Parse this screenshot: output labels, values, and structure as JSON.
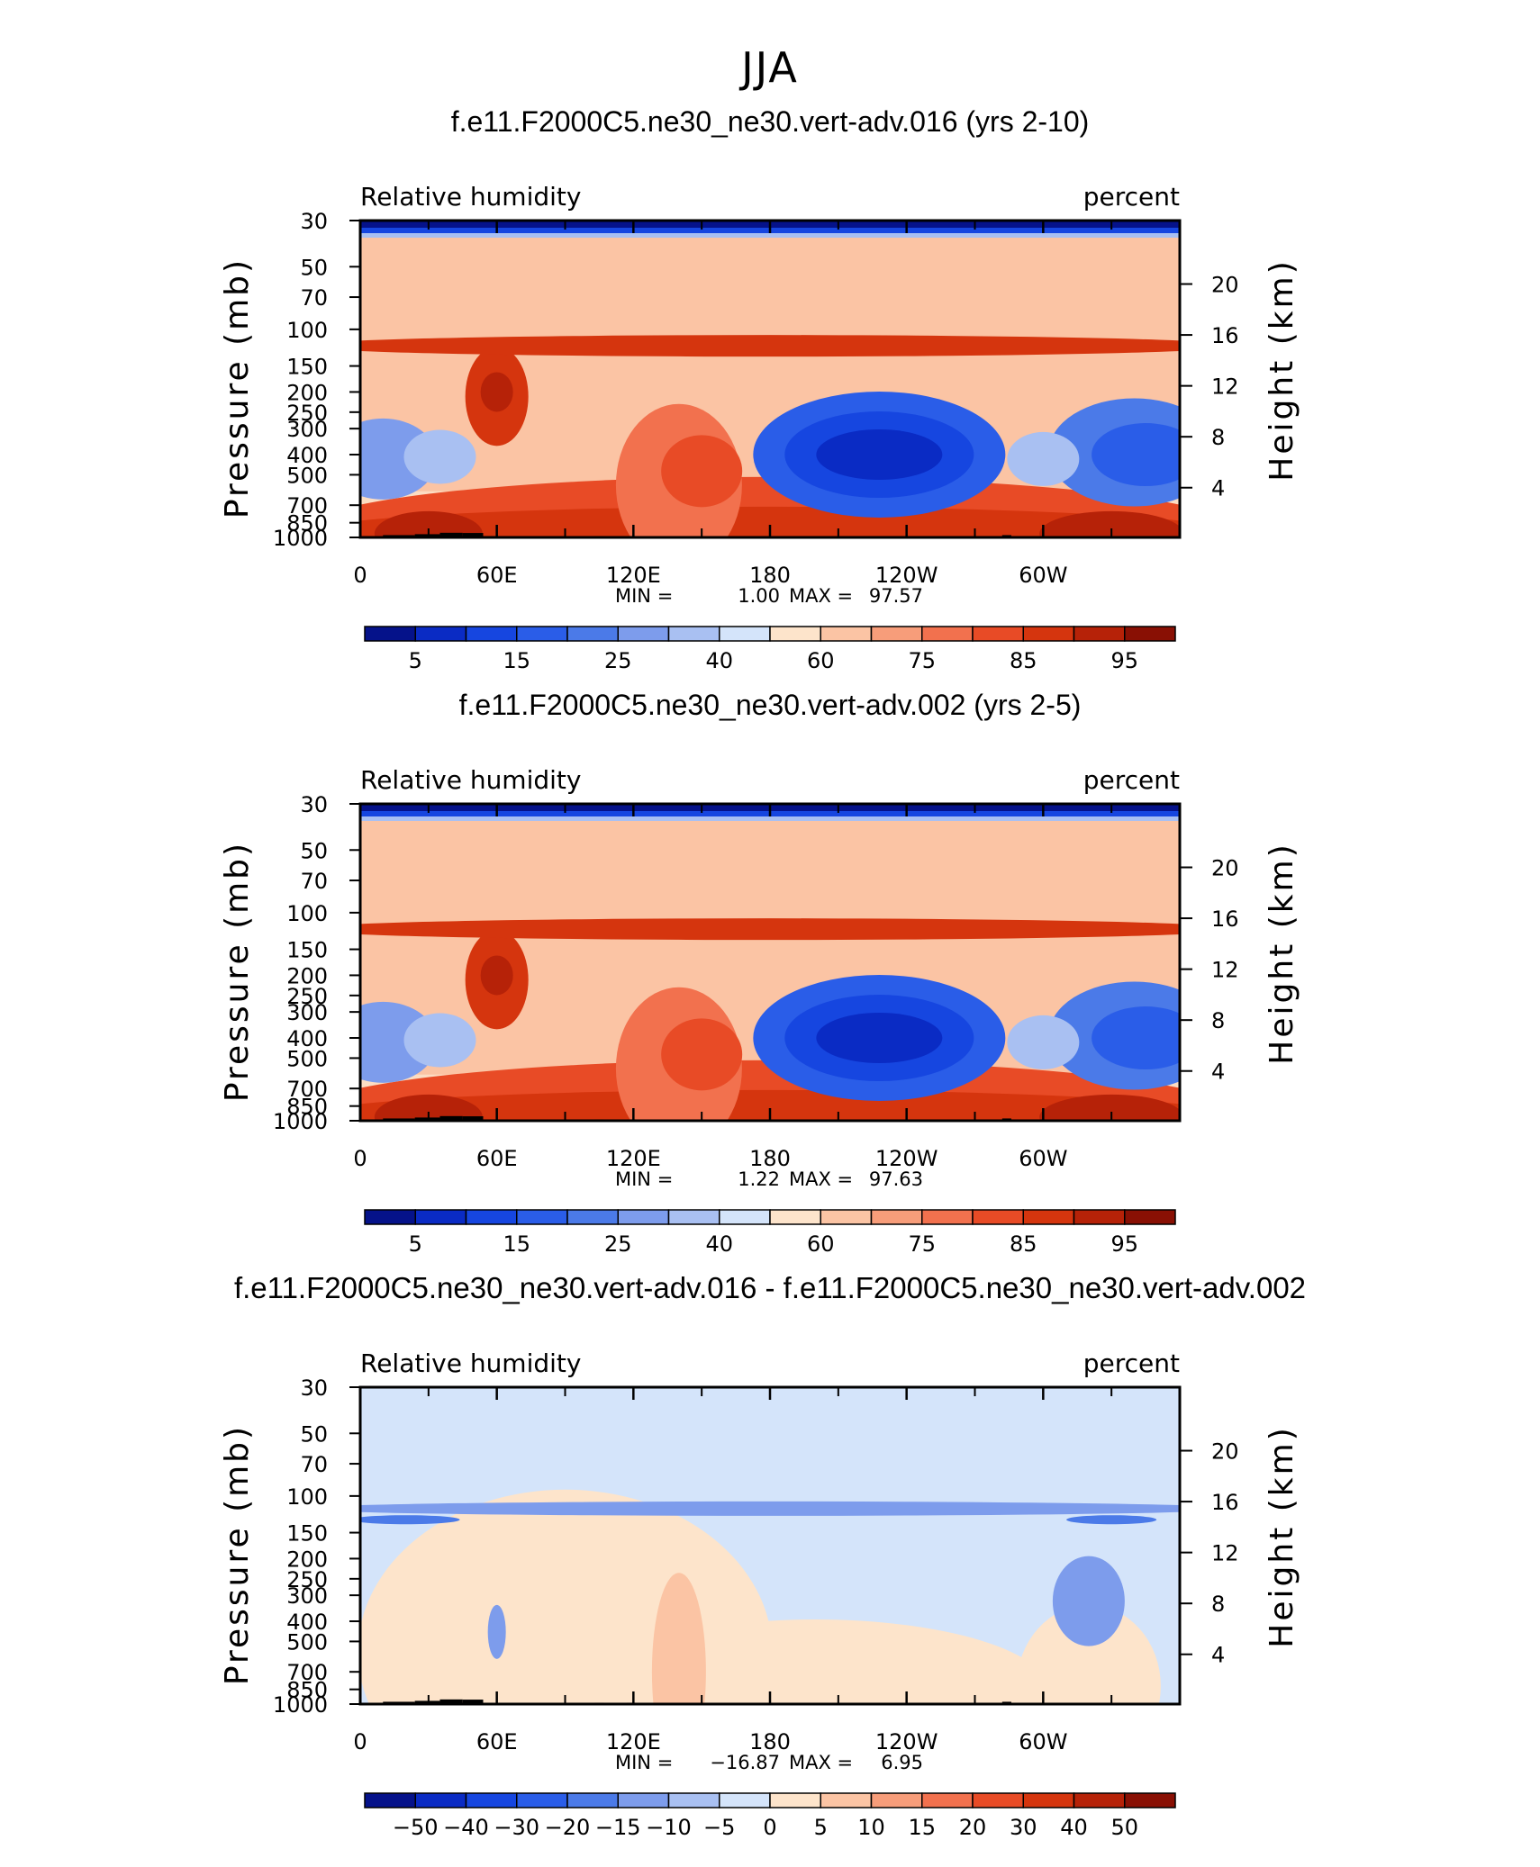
{
  "page_title": "JJA",
  "colors": {
    "frame": "#000000",
    "land": "#000000"
  },
  "chart_data": [
    {
      "type": "contour",
      "title": "f.e11.F2000C5.ne30_ne30.vert-adv.016 (yrs 2-10)",
      "subtitle_left": "Relative humidity",
      "subtitle_right": "percent",
      "ylabel": "Pressure (mb)",
      "ylabel_right": "Height (km)",
      "x_ticks": [
        "0",
        "60E",
        "120E",
        "180",
        "120W",
        "60W"
      ],
      "y_ticks": [
        "30",
        "50",
        "70",
        "100",
        "150",
        "200",
        "250",
        "300",
        "400",
        "500",
        "700",
        "850",
        "1000"
      ],
      "height_ticks": [
        "20",
        "16",
        "12",
        "8",
        "4"
      ],
      "min_label": "MIN =",
      "min_value": "1.00",
      "max_label": "MAX =",
      "max_value": "97.57",
      "colorbar_labels": [
        "5",
        "15",
        "25",
        "40",
        "60",
        "75",
        "85",
        "95"
      ],
      "colorbar_colors": [
        "#05128a",
        "#0a2bc4",
        "#1646e0",
        "#2a5de8",
        "#4b7ae8",
        "#7d9cec",
        "#a9c0f2",
        "#d4e4fa",
        "#fde4cb",
        "#fbc4a4",
        "#f79d7a",
        "#f2714e",
        "#e84b26",
        "#d5350e",
        "#b62208",
        "#891004"
      ],
      "value_range": [
        1.0,
        97.57
      ]
    },
    {
      "type": "contour",
      "title": "f.e11.F2000C5.ne30_ne30.vert-adv.002 (yrs 2-5)",
      "subtitle_left": "Relative humidity",
      "subtitle_right": "percent",
      "ylabel": "Pressure (mb)",
      "ylabel_right": "Height (km)",
      "x_ticks": [
        "0",
        "60E",
        "120E",
        "180",
        "120W",
        "60W"
      ],
      "y_ticks": [
        "30",
        "50",
        "70",
        "100",
        "150",
        "200",
        "250",
        "300",
        "400",
        "500",
        "700",
        "850",
        "1000"
      ],
      "height_ticks": [
        "20",
        "16",
        "12",
        "8",
        "4"
      ],
      "min_label": "MIN =",
      "min_value": "1.22",
      "max_label": "MAX =",
      "max_value": "97.63",
      "colorbar_labels": [
        "5",
        "15",
        "25",
        "40",
        "60",
        "75",
        "85",
        "95"
      ],
      "colorbar_colors": [
        "#05128a",
        "#0a2bc4",
        "#1646e0",
        "#2a5de8",
        "#4b7ae8",
        "#7d9cec",
        "#a9c0f2",
        "#d4e4fa",
        "#fde4cb",
        "#fbc4a4",
        "#f79d7a",
        "#f2714e",
        "#e84b26",
        "#d5350e",
        "#b62208",
        "#891004"
      ],
      "value_range": [
        1.22,
        97.63
      ]
    },
    {
      "type": "contour",
      "title": "f.e11.F2000C5.ne30_ne30.vert-adv.016 - f.e11.F2000C5.ne30_ne30.vert-adv.002",
      "subtitle_left": "Relative humidity",
      "subtitle_right": "percent",
      "ylabel": "Pressure (mb)",
      "ylabel_right": "Height (km)",
      "x_ticks": [
        "0",
        "60E",
        "120E",
        "180",
        "120W",
        "60W"
      ],
      "y_ticks": [
        "30",
        "50",
        "70",
        "100",
        "150",
        "200",
        "250",
        "300",
        "400",
        "500",
        "700",
        "850",
        "1000"
      ],
      "height_ticks": [
        "20",
        "16",
        "12",
        "8",
        "4"
      ],
      "min_label": "MIN =",
      "min_value": "−16.87",
      "max_label": "MAX =",
      "max_value": "6.95",
      "colorbar_labels": [
        "−50",
        "−40",
        "−30",
        "−20",
        "−15",
        "−10",
        "−5",
        "0",
        "5",
        "10",
        "15",
        "20",
        "30",
        "40",
        "50"
      ],
      "colorbar_colors": [
        "#05128a",
        "#0a2bc4",
        "#1646e0",
        "#2a5de8",
        "#4b7ae8",
        "#7d9cec",
        "#a9c0f2",
        "#d4e4fa",
        "#fde4cb",
        "#fbc4a4",
        "#f79d7a",
        "#f2714e",
        "#e84b26",
        "#d5350e",
        "#b62208",
        "#891004"
      ],
      "value_range": [
        -16.87,
        6.95
      ]
    }
  ]
}
